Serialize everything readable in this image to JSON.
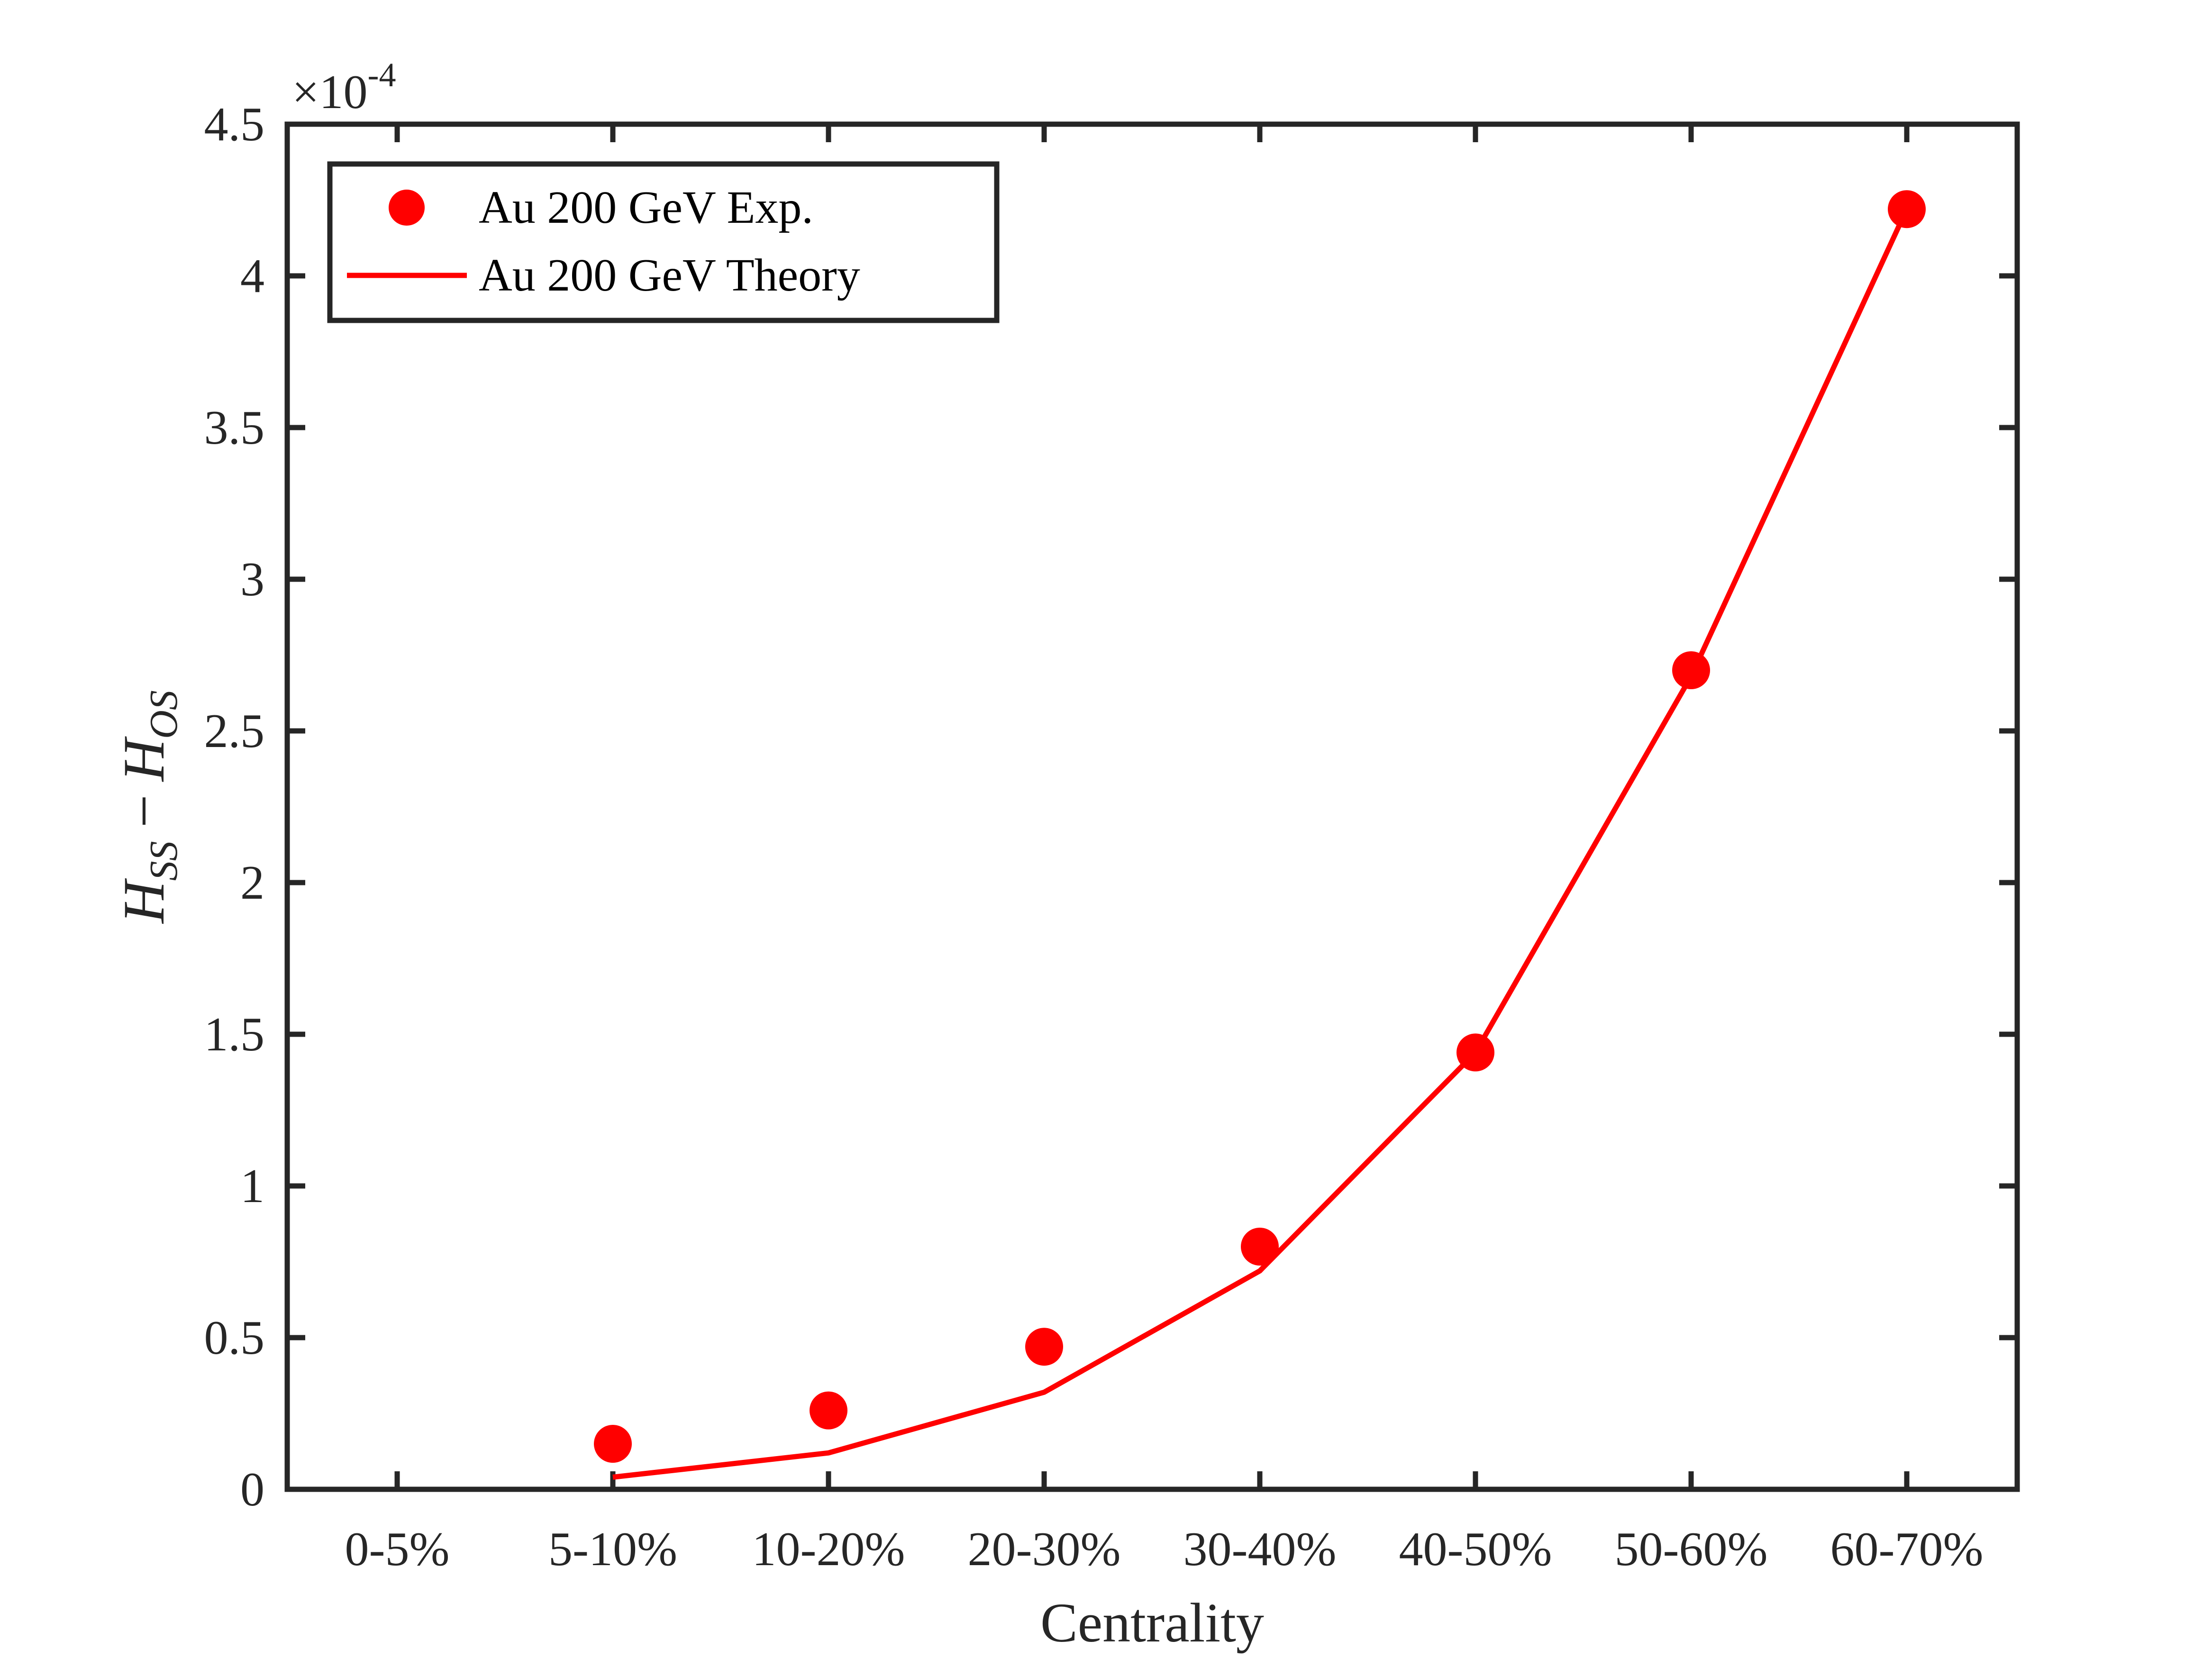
{
  "chart_data": {
    "type": "line",
    "title": "",
    "xlabel": "Centrality",
    "ylabel": {
      "main_left": "H",
      "sub_left": "SS",
      "operator": "−",
      "main_right": "H",
      "sub_right": "OS"
    },
    "y_exponent": {
      "base": "×10",
      "power": "-4"
    },
    "categories": [
      "0-5%",
      "5-10%",
      "10-20%",
      "20-30%",
      "30-40%",
      "40-50%",
      "50-60%",
      "60-70%"
    ],
    "ylim": [
      0,
      4.5
    ],
    "yticks": [
      "0",
      "0.5",
      "1",
      "1.5",
      "2",
      "2.5",
      "3",
      "3.5",
      "4",
      "4.5"
    ],
    "grid": false,
    "legend_position": "top-left",
    "colors": {
      "series": "#ff0000",
      "axis": "#262626"
    },
    "series": [
      {
        "name": "Au 200 GeV Exp.",
        "style": "markers",
        "values": [
          null,
          0.15,
          0.26,
          0.47,
          0.8,
          1.44,
          2.7,
          4.22
        ]
      },
      {
        "name": "Au 200 GeV Theory",
        "style": "line",
        "values": [
          null,
          0.04,
          0.12,
          0.32,
          0.72,
          1.44,
          2.68,
          4.22
        ]
      }
    ]
  }
}
